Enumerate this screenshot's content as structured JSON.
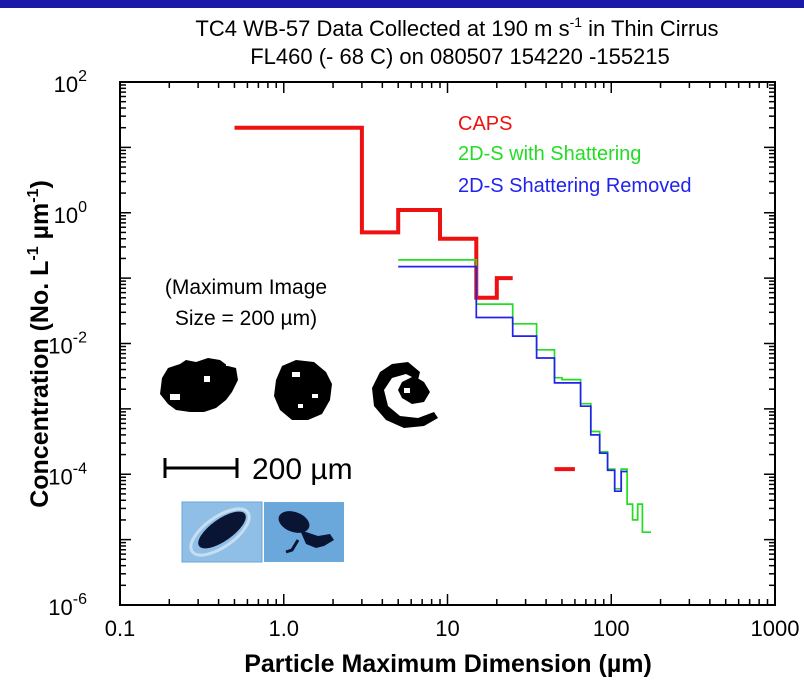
{
  "chart_data": {
    "type": "line",
    "title_line1_main": "TC4 WB-57 Data Collected at 190 m s",
    "title_line1_sup": "-1",
    "title_line1_tail": " in Thin Cirrus",
    "title_line2": "FL460 (- 68 C) on 080507 154220 -155215",
    "xlabel_main": "Particle Maximum Dimension (",
    "xlabel_unit": "µm",
    "xlabel_close": ")",
    "ylabel_main": "Concentration (No. L",
    "ylabel_sup1": "-1",
    "ylabel_mid": " µm",
    "ylabel_sup2": "-1",
    "ylabel_close": ")",
    "xscale": "log",
    "yscale": "log",
    "xlim": [
      0.1,
      1000
    ],
    "ylim": [
      1e-06,
      100
    ],
    "x_ticks": [
      {
        "value": 0.1,
        "label": "0.1"
      },
      {
        "value": 1,
        "label": "1.0"
      },
      {
        "value": 10,
        "label": "10"
      },
      {
        "value": 100,
        "label": "100"
      },
      {
        "value": 1000,
        "label": "1000"
      }
    ],
    "y_ticks": [
      {
        "value": 1e-06,
        "base": "10",
        "exp": "-6"
      },
      {
        "value": 0.0001,
        "base": "10",
        "exp": "-4"
      },
      {
        "value": 0.01,
        "base": "10",
        "exp": "-2"
      },
      {
        "value": 1,
        "base": "10",
        "exp": "0"
      },
      {
        "value": 100,
        "base": "10",
        "exp": "2"
      }
    ],
    "grid": false,
    "legend_position": "top-right",
    "series": [
      {
        "name": "CAPS",
        "color": "#ee1111",
        "segments": [
          {
            "x": [
              0.5,
              3,
              3,
              5,
              5,
              9,
              9,
              15,
              15,
              20,
              20,
              25
            ],
            "y": [
              20,
              20,
              0.5,
              0.5,
              1.1,
              1.1,
              0.4,
              0.4,
              0.05,
              0.05,
              0.1,
              0.1
            ]
          },
          {
            "x": [
              45,
              60
            ],
            "y": [
              0.00012,
              0.00012
            ]
          }
        ]
      },
      {
        "name": "2D-S with Shattering",
        "color": "#22dd22",
        "segments": [
          {
            "x": [
              5,
              15,
              15,
              25,
              25,
              35,
              35,
              45,
              45,
              50,
              50,
              65,
              65,
              75,
              75,
              85,
              85,
              95,
              95,
              105,
              105,
              115,
              115,
              125,
              125,
              135,
              135,
              145,
              145,
              155,
              155,
              175
            ],
            "y": [
              0.19,
              0.19,
              0.04,
              0.04,
              0.02,
              0.02,
              0.008,
              0.008,
              0.003,
              0.003,
              0.0028,
              0.0028,
              0.0012,
              0.0012,
              0.00045,
              0.00045,
              0.00022,
              0.00022,
              0.00012,
              0.00012,
              6e-05,
              6e-05,
              0.00012,
              0.00012,
              3.5e-05,
              3.5e-05,
              2e-05,
              2e-05,
              3.5e-05,
              3.5e-05,
              1.3e-05,
              1.3e-05
            ]
          }
        ]
      },
      {
        "name": "2D-S Shattering Removed",
        "color": "#2222ee",
        "segments": [
          {
            "x": [
              5,
              15,
              15,
              25,
              25,
              35,
              35,
              45,
              45,
              50,
              50,
              65,
              65,
              75,
              75,
              85,
              85,
              95,
              95,
              105,
              105,
              115,
              115,
              125
            ],
            "y": [
              0.15,
              0.15,
              0.025,
              0.025,
              0.013,
              0.013,
              0.006,
              0.006,
              0.0025,
              0.0025,
              0.0025,
              0.0025,
              0.0011,
              0.0011,
              0.0004,
              0.0004,
              0.00021,
              0.00021,
              0.000115,
              0.000115,
              5.5e-05,
              5.5e-05,
              0.00011,
              0.00011
            ]
          }
        ]
      }
    ],
    "annotations": {
      "max_image_line1": "(Maximum Image",
      "max_image_line2": "Size = 200 µm)",
      "scale_bar_label": "200 µm"
    }
  }
}
